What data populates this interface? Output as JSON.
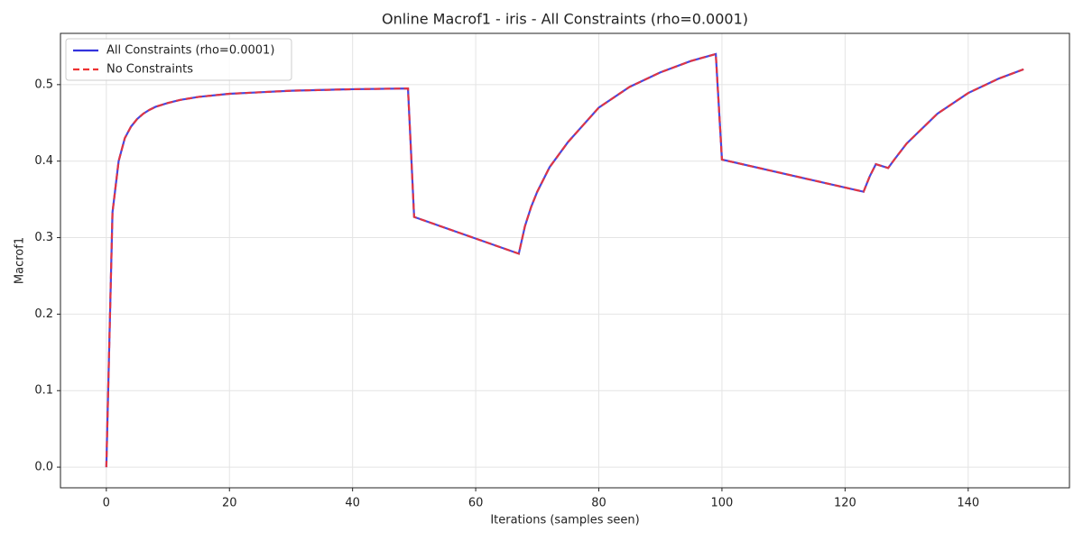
{
  "chart_data": {
    "type": "line",
    "title": "Online Macrof1 - iris - All Constraints (rho=0.0001)",
    "x_label": "Iterations (samples seen)",
    "y_label": "Macrof1",
    "x": [
      0,
      1,
      2,
      3,
      4,
      5,
      6,
      7,
      8,
      10,
      12,
      15,
      20,
      25,
      30,
      40,
      49,
      50,
      67,
      68,
      69,
      70,
      72,
      75,
      80,
      85,
      90,
      95,
      99,
      100,
      123,
      124,
      125,
      127,
      128,
      130,
      135,
      140,
      145,
      149
    ],
    "series": [
      {
        "name": "All Constraints (rho=0.0001)",
        "color": "#3333dd",
        "dash": "solid",
        "values": [
          0,
          0.333,
          0.4,
          0.43,
          0.445,
          0.455,
          0.462,
          0.467,
          0.471,
          0.476,
          0.48,
          0.484,
          0.488,
          0.49,
          0.492,
          0.494,
          0.495,
          0.327,
          0.279,
          0.315,
          0.34,
          0.36,
          0.392,
          0.425,
          0.47,
          0.497,
          0.516,
          0.531,
          0.54,
          0.402,
          0.36,
          0.38,
          0.396,
          0.391,
          0.402,
          0.423,
          0.462,
          0.489,
          0.508,
          0.52
        ]
      },
      {
        "name": "No Constraints",
        "color": "#ee3333",
        "dash": "dashed",
        "values": [
          0,
          0.333,
          0.4,
          0.43,
          0.445,
          0.455,
          0.462,
          0.467,
          0.471,
          0.476,
          0.48,
          0.484,
          0.488,
          0.49,
          0.492,
          0.494,
          0.495,
          0.327,
          0.279,
          0.315,
          0.34,
          0.36,
          0.392,
          0.425,
          0.47,
          0.497,
          0.516,
          0.531,
          0.54,
          0.402,
          0.36,
          0.38,
          0.396,
          0.391,
          0.402,
          0.423,
          0.462,
          0.489,
          0.508,
          0.52
        ]
      }
    ],
    "xlim": [
      -7.45,
      156.45
    ],
    "xticks": [
      0,
      20,
      40,
      60,
      80,
      100,
      120,
      140
    ],
    "ylim": [
      -0.027,
      0.567
    ],
    "yticks": [
      {
        "value": 0,
        "label": "0.0"
      },
      0.1,
      0.2,
      0.3,
      0.4,
      0.5
    ],
    "grid": true,
    "legend": "upper left"
  }
}
